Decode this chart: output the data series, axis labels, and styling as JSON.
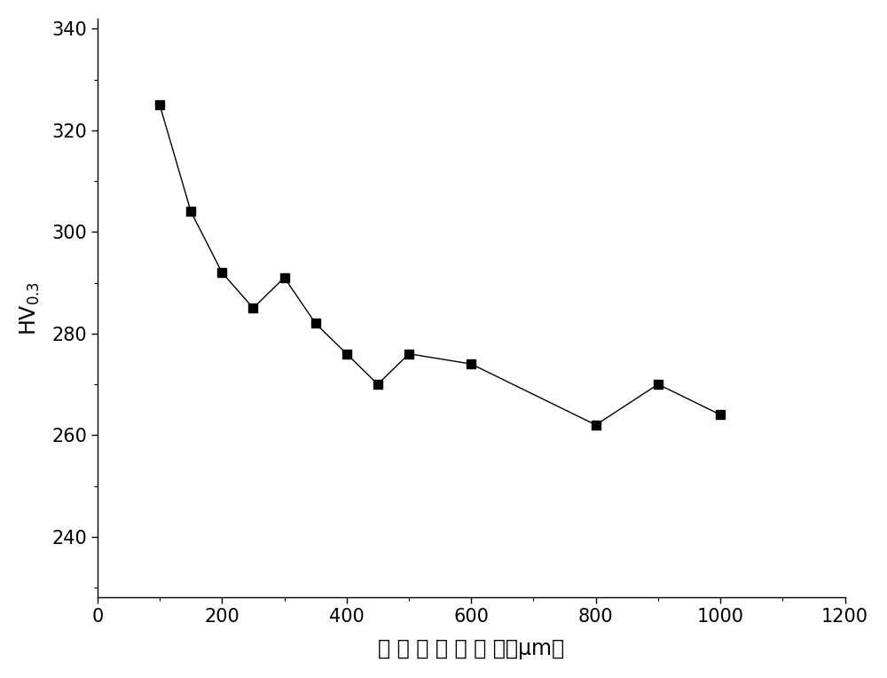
{
  "x": [
    100,
    150,
    200,
    250,
    300,
    350,
    400,
    450,
    500,
    600,
    800,
    900,
    1000
  ],
  "y": [
    325,
    304,
    292,
    285,
    291,
    282,
    276,
    270,
    276,
    274,
    262,
    270,
    264
  ],
  "xlim": [
    0,
    1200
  ],
  "ylim": [
    228,
    342
  ],
  "xticks": [
    0,
    200,
    400,
    600,
    800,
    1000,
    1200
  ],
  "yticks": [
    240,
    260,
    280,
    300,
    320,
    340
  ],
  "xlabel": "距 试 样 表 面 尺 寸（μm）",
  "line_color": "#000000",
  "marker": "s",
  "marker_size": 7,
  "marker_color": "#000000",
  "line_width": 1.0,
  "background_color": "#ffffff",
  "xlabel_fontsize": 17,
  "ylabel_fontsize": 17,
  "tick_fontsize": 15
}
